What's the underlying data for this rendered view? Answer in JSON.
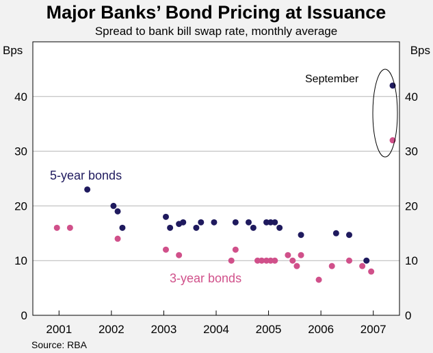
{
  "chart_data": {
    "type": "scatter",
    "title": "Major Banks’ Bond Pricing at Issuance",
    "subtitle": "Spread to bank bill swap rate, monthly average",
    "ylabel_left": "Bps",
    "ylabel_right": "Bps",
    "ylim": [
      0,
      50
    ],
    "yticks": [
      0,
      10,
      20,
      30,
      40
    ],
    "xlim": [
      2000.5,
      2007.5
    ],
    "xticks": [
      "2001",
      "2002",
      "2003",
      "2004",
      "2005",
      "2006",
      "2007"
    ],
    "grid": true,
    "source": "Source: RBA",
    "annotation": "September",
    "series": [
      {
        "name": "5-year bonds",
        "color": "#1f1a5e",
        "points": [
          [
            2001.54,
            23
          ],
          [
            2002.04,
            20
          ],
          [
            2002.12,
            19
          ],
          [
            2002.21,
            16
          ],
          [
            2003.04,
            18
          ],
          [
            2003.12,
            16
          ],
          [
            2003.29,
            16.7
          ],
          [
            2003.37,
            17
          ],
          [
            2003.62,
            16
          ],
          [
            2003.71,
            17
          ],
          [
            2003.96,
            17
          ],
          [
            2004.37,
            17
          ],
          [
            2004.62,
            17
          ],
          [
            2004.71,
            16
          ],
          [
            2005.04,
            17
          ],
          [
            2005.21,
            16
          ],
          [
            2004.96,
            17
          ],
          [
            2005.12,
            17
          ],
          [
            2005.62,
            14.7
          ],
          [
            2006.29,
            15
          ],
          [
            2006.54,
            14.7
          ],
          [
            2006.87,
            10
          ],
          [
            2007.37,
            42
          ]
        ]
      },
      {
        "name": "3-year bonds",
        "color": "#d0508a",
        "points": [
          [
            2000.96,
            16
          ],
          [
            2001.21,
            16
          ],
          [
            2002.12,
            14
          ],
          [
            2003.04,
            12
          ],
          [
            2003.29,
            11
          ],
          [
            2004.29,
            10
          ],
          [
            2004.37,
            12
          ],
          [
            2004.79,
            10
          ],
          [
            2004.87,
            10
          ],
          [
            2004.96,
            10
          ],
          [
            2005.04,
            10
          ],
          [
            2005.12,
            10
          ],
          [
            2005.37,
            11
          ],
          [
            2005.46,
            10
          ],
          [
            2005.54,
            9
          ],
          [
            2005.62,
            11
          ],
          [
            2005.96,
            6.5
          ],
          [
            2006.21,
            9
          ],
          [
            2006.54,
            10
          ],
          [
            2006.79,
            9
          ],
          [
            2006.96,
            8
          ],
          [
            2007.37,
            32
          ]
        ]
      }
    ]
  }
}
